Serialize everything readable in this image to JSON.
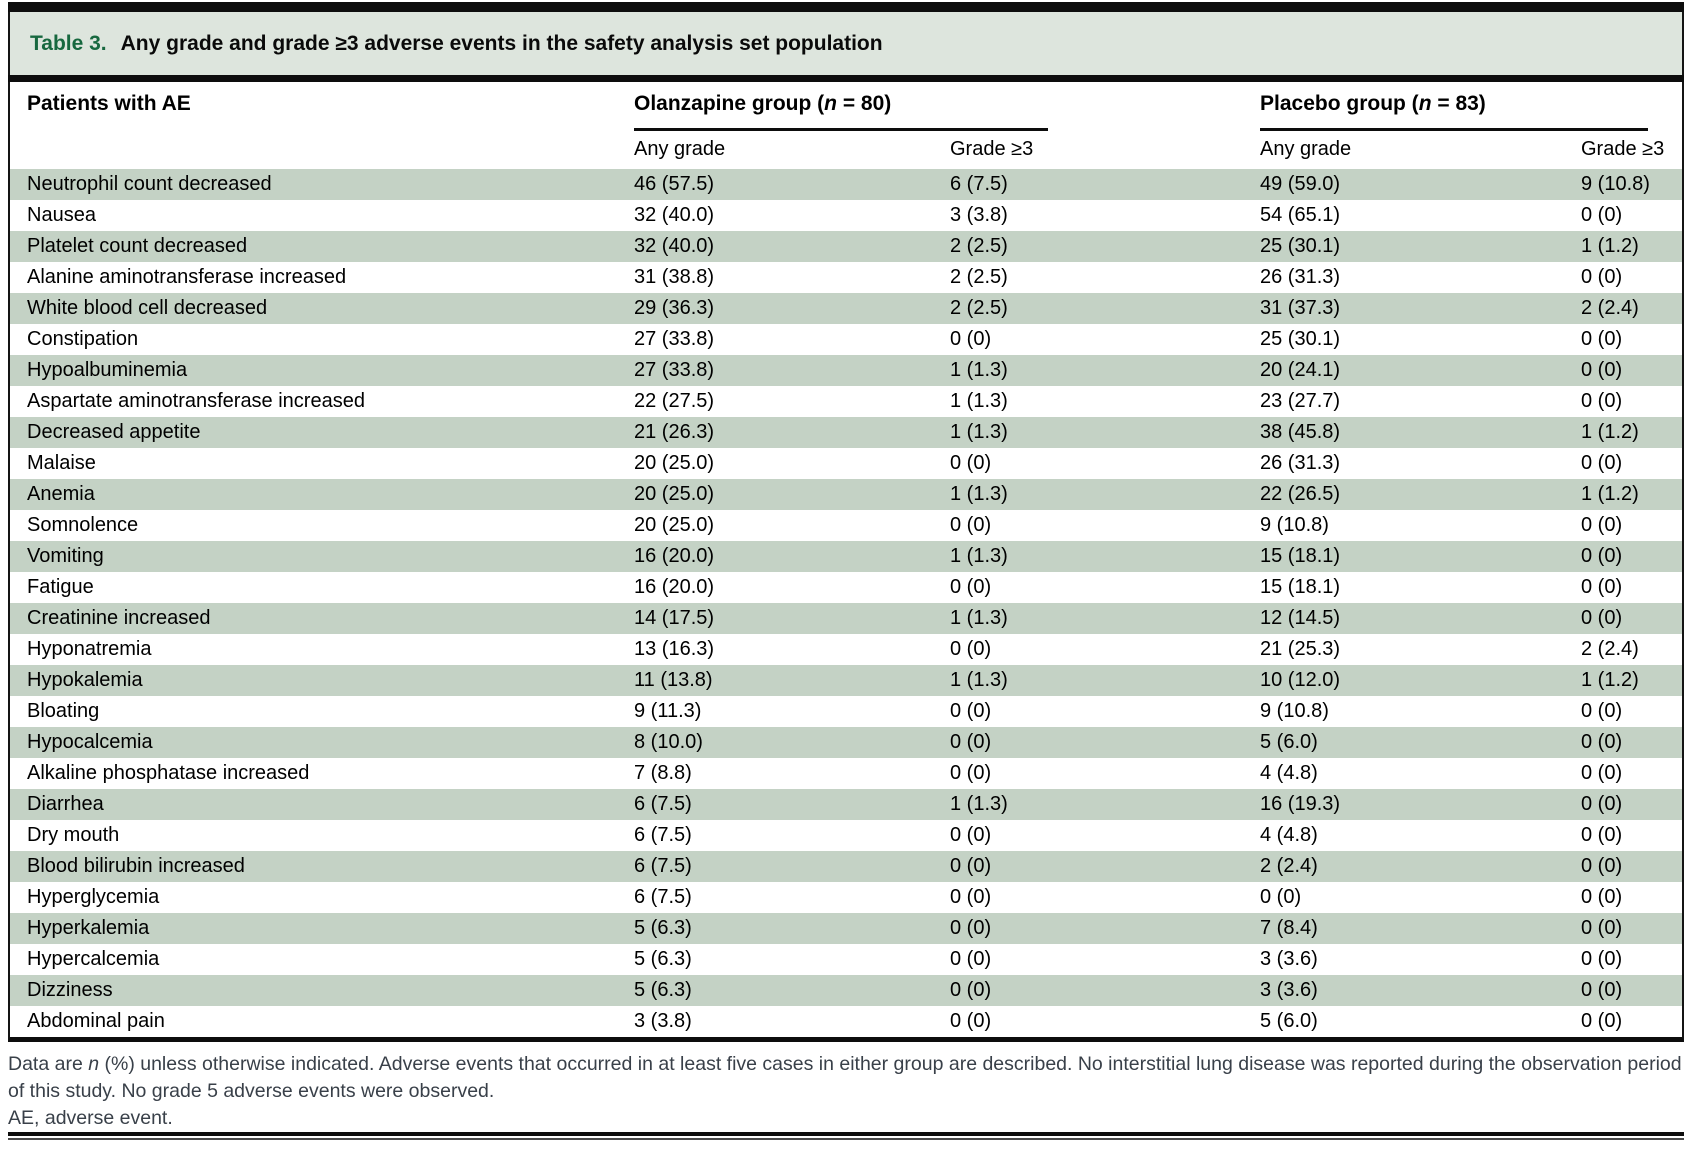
{
  "title": {
    "label": "Table 3.",
    "text": "Any grade and grade ≥3 adverse events in the safety analysis set population"
  },
  "header": {
    "row_label": "Patients with AE",
    "groups": [
      {
        "name_pre": "Olanzapine group (",
        "n_symbol": "n",
        "name_post": " = 80)",
        "subcolumns": [
          "Any grade",
          "Grade ≥3"
        ]
      },
      {
        "name_pre": "Placebo group (",
        "n_symbol": "n",
        "name_post": " = 83)",
        "subcolumns": [
          "Any grade",
          "Grade ≥3"
        ]
      }
    ]
  },
  "table": {
    "rows": [
      {
        "name": "Neutrophil count decreased",
        "values": [
          "46 (57.5)",
          "6 (7.5)",
          "49 (59.0)",
          "9 (10.8)"
        ]
      },
      {
        "name": "Nausea",
        "values": [
          "32 (40.0)",
          "3 (3.8)",
          "54 (65.1)",
          "0 (0)"
        ]
      },
      {
        "name": "Platelet count decreased",
        "values": [
          "32 (40.0)",
          "2 (2.5)",
          "25 (30.1)",
          "1 (1.2)"
        ]
      },
      {
        "name": "Alanine aminotransferase increased",
        "values": [
          "31 (38.8)",
          "2 (2.5)",
          "26 (31.3)",
          "0 (0)"
        ]
      },
      {
        "name": "White blood cell decreased",
        "values": [
          "29 (36.3)",
          "2 (2.5)",
          "31 (37.3)",
          "2 (2.4)"
        ]
      },
      {
        "name": "Constipation",
        "values": [
          "27 (33.8)",
          "0 (0)",
          "25 (30.1)",
          "0 (0)"
        ]
      },
      {
        "name": "Hypoalbuminemia",
        "values": [
          "27 (33.8)",
          "1 (1.3)",
          "20 (24.1)",
          "0 (0)"
        ]
      },
      {
        "name": "Aspartate aminotransferase increased",
        "values": [
          "22 (27.5)",
          "1 (1.3)",
          "23 (27.7)",
          "0 (0)"
        ]
      },
      {
        "name": "Decreased appetite",
        "values": [
          "21 (26.3)",
          "1 (1.3)",
          "38 (45.8)",
          "1 (1.2)"
        ]
      },
      {
        "name": "Malaise",
        "values": [
          "20 (25.0)",
          "0 (0)",
          "26 (31.3)",
          "0 (0)"
        ]
      },
      {
        "name": "Anemia",
        "values": [
          "20 (25.0)",
          "1 (1.3)",
          "22 (26.5)",
          "1 (1.2)"
        ]
      },
      {
        "name": "Somnolence",
        "values": [
          "20 (25.0)",
          "0 (0)",
          "9 (10.8)",
          "0 (0)"
        ]
      },
      {
        "name": "Vomiting",
        "values": [
          "16 (20.0)",
          "1 (1.3)",
          "15 (18.1)",
          "0 (0)"
        ]
      },
      {
        "name": "Fatigue",
        "values": [
          "16 (20.0)",
          "0 (0)",
          "15 (18.1)",
          "0 (0)"
        ]
      },
      {
        "name": "Creatinine increased",
        "values": [
          "14 (17.5)",
          "1 (1.3)",
          "12 (14.5)",
          "0 (0)"
        ]
      },
      {
        "name": "Hyponatremia",
        "values": [
          "13 (16.3)",
          "0 (0)",
          "21 (25.3)",
          "2 (2.4)"
        ]
      },
      {
        "name": "Hypokalemia",
        "values": [
          "11 (13.8)",
          "1 (1.3)",
          "10 (12.0)",
          "1 (1.2)"
        ]
      },
      {
        "name": "Bloating",
        "values": [
          "9 (11.3)",
          "0 (0)",
          "9 (10.8)",
          "0 (0)"
        ]
      },
      {
        "name": "Hypocalcemia",
        "values": [
          "8 (10.0)",
          "0 (0)",
          "5 (6.0)",
          "0 (0)"
        ]
      },
      {
        "name": "Alkaline phosphatase increased",
        "values": [
          "7 (8.8)",
          "0 (0)",
          "4 (4.8)",
          "0 (0)"
        ]
      },
      {
        "name": "Diarrhea",
        "values": [
          "6 (7.5)",
          "1 (1.3)",
          "16 (19.3)",
          "0 (0)"
        ]
      },
      {
        "name": "Dry mouth",
        "values": [
          "6 (7.5)",
          "0 (0)",
          "4 (4.8)",
          "0 (0)"
        ]
      },
      {
        "name": "Blood bilirubin increased",
        "values": [
          "6 (7.5)",
          "0 (0)",
          "2 (2.4)",
          "0 (0)"
        ]
      },
      {
        "name": "Hyperglycemia",
        "values": [
          "6 (7.5)",
          "0 (0)",
          "0 (0)",
          "0 (0)"
        ]
      },
      {
        "name": "Hyperkalemia",
        "values": [
          "5 (6.3)",
          "0 (0)",
          "7 (8.4)",
          "0 (0)"
        ]
      },
      {
        "name": "Hypercalcemia",
        "values": [
          "5 (6.3)",
          "0 (0)",
          "3 (3.6)",
          "0 (0)"
        ]
      },
      {
        "name": "Dizziness",
        "values": [
          "5 (6.3)",
          "0 (0)",
          "3 (3.6)",
          "0 (0)"
        ]
      },
      {
        "name": "Abdominal pain",
        "values": [
          "3 (3.8)",
          "0 (0)",
          "5 (6.0)",
          "0 (0)"
        ]
      }
    ]
  },
  "footnotes": {
    "note_pre": "Data are ",
    "note_italic": "n",
    "note_post": " (%) unless otherwise indicated. Adverse events that occurred in at least five cases in either group are described. No interstitial lung disease was reported during the observation period of this study. No grade 5 adverse events were observed.",
    "abbreviation": "AE, adverse event."
  },
  "colors": {
    "accent_green": "#17683f",
    "titlebar_bg": "#dde5dd",
    "stripe_green": "#c4d2c5"
  }
}
